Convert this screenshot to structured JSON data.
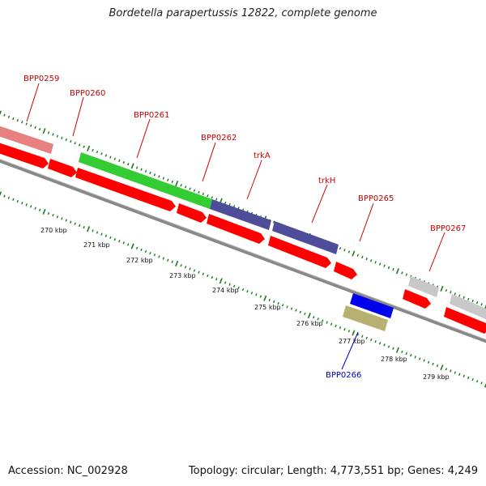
{
  "title": "Bordetella parapertussis 12822, complete genome",
  "footer": {
    "accession": "Accession: NC_002928",
    "summary": "Topology: circular; Length: 4,773,551 bp; Genes: 4,249"
  },
  "colors": {
    "backbone": "#888888",
    "label_forward": "#cc0000",
    "label_reverse": "#0000cc",
    "tick": "#1a7a1a",
    "cds": "#ff0000",
    "blast_pink": "#e88080",
    "blast_green": "#33cc33",
    "blast_purple": "#4d4d99",
    "blast_grey": "#c8c8c8",
    "blast_blue": "#0000ee",
    "blast_olive": "#b8b070"
  },
  "genes": [
    {
      "name": "BPP0259",
      "strand": "forward"
    },
    {
      "name": "BPP0260",
      "strand": "forward"
    },
    {
      "name": "BPP0261",
      "strand": "forward"
    },
    {
      "name": "BPP0262",
      "strand": "forward"
    },
    {
      "name": "trkA",
      "strand": "forward"
    },
    {
      "name": "trkH",
      "strand": "forward"
    },
    {
      "name": "BPP0265",
      "strand": "forward"
    },
    {
      "name": "BPP0267",
      "strand": "forward"
    },
    {
      "name": "BPP0266",
      "strand": "reverse"
    }
  ],
  "scale_labels": [
    "270 kbp",
    "271 kbp",
    "272 kbp",
    "273 kbp",
    "274 kbp",
    "275 kbp",
    "276 kbp",
    "277 kbp",
    "278 kbp",
    "279 kbp"
  ]
}
